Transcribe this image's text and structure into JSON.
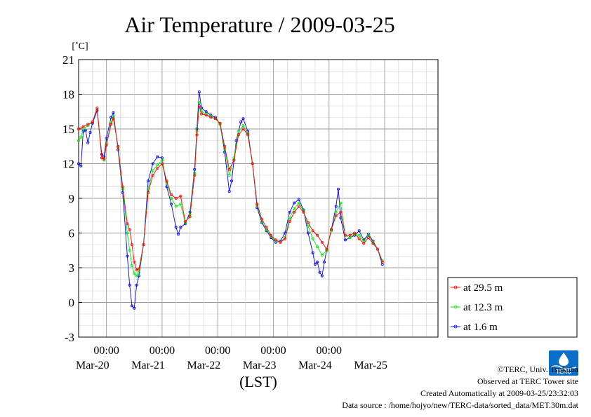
{
  "chart_data": {
    "type": "line",
    "title": "Air Temperature / 2009-03-25",
    "ylabel": "[˚C]",
    "xlabel": "(LST)",
    "ylim": [
      -3,
      21
    ],
    "yticks": [
      -3,
      0,
      3,
      6,
      9,
      12,
      15,
      18,
      21
    ],
    "xlim": [
      "2009-03-19T12:00",
      "2009-03-25T23:00"
    ],
    "time_labels": [
      {
        "at": "2009-03-20T00:00",
        "label": "00:00"
      },
      {
        "at": "2009-03-21T00:00",
        "label": "00:00"
      },
      {
        "at": "2009-03-22T00:00",
        "label": "00:00"
      },
      {
        "at": "2009-03-23T00:00",
        "label": "00:00"
      },
      {
        "at": "2009-03-24T00:00",
        "label": "00:00"
      }
    ],
    "date_labels": [
      {
        "at": "2009-03-19T18:00",
        "label": "Mar-20"
      },
      {
        "at": "2009-03-20T18:00",
        "label": "Mar-21"
      },
      {
        "at": "2009-03-21T18:00",
        "label": "Mar-22"
      },
      {
        "at": "2009-03-22T18:00",
        "label": "Mar-23"
      },
      {
        "at": "2009-03-23T18:00",
        "label": "Mar-24"
      },
      {
        "at": "2009-03-24T18:00",
        "label": "Mar-25"
      }
    ],
    "grid": true,
    "legend_position": "right",
    "series": [
      {
        "name": "at 29.5 m",
        "color": "#ff0000",
        "points": [
          [
            "2009-03-19T12:00",
            15.0
          ],
          [
            "2009-03-19T14:00",
            15.2
          ],
          [
            "2009-03-19T16:00",
            15.4
          ],
          [
            "2009-03-19T18:00",
            15.6
          ],
          [
            "2009-03-19T20:00",
            16.8
          ],
          [
            "2009-03-19T22:00",
            12.5
          ],
          [
            "2009-03-19T23:00",
            12.4
          ],
          [
            "2009-03-20T00:00",
            13.6
          ],
          [
            "2009-03-20T02:00",
            15.4
          ],
          [
            "2009-03-20T03:00",
            15.9
          ],
          [
            "2009-03-20T05:00",
            13.5
          ],
          [
            "2009-03-20T07:00",
            10.0
          ],
          [
            "2009-03-20T09:00",
            6.8
          ],
          [
            "2009-03-20T10:00",
            6.3
          ],
          [
            "2009-03-20T11:00",
            5.0
          ],
          [
            "2009-03-20T12:00",
            3.5
          ],
          [
            "2009-03-20T13:00",
            2.8
          ],
          [
            "2009-03-20T14:00",
            2.9
          ],
          [
            "2009-03-20T16:00",
            5.0
          ],
          [
            "2009-03-20T18:00",
            9.5
          ],
          [
            "2009-03-20T20:00",
            11.0
          ],
          [
            "2009-03-20T22:00",
            11.6
          ],
          [
            "2009-03-21T00:00",
            12.0
          ],
          [
            "2009-03-21T02:00",
            10.5
          ],
          [
            "2009-03-21T04:00",
            9.3
          ],
          [
            "2009-03-21T06:00",
            9.0
          ],
          [
            "2009-03-21T08:00",
            9.2
          ],
          [
            "2009-03-21T10:00",
            7.0
          ],
          [
            "2009-03-21T12:00",
            7.4
          ],
          [
            "2009-03-21T14:00",
            11.0
          ],
          [
            "2009-03-21T15:00",
            14.5
          ],
          [
            "2009-03-21T16:00",
            17.0
          ],
          [
            "2009-03-21T17:00",
            16.3
          ],
          [
            "2009-03-21T19:00",
            16.2
          ],
          [
            "2009-03-21T21:00",
            16.0
          ],
          [
            "2009-03-21T23:00",
            15.9
          ],
          [
            "2009-03-22T01:00",
            15.5
          ],
          [
            "2009-03-22T03:00",
            13.5
          ],
          [
            "2009-03-22T05:00",
            11.5
          ],
          [
            "2009-03-22T07:00",
            12.3
          ],
          [
            "2009-03-22T09:00",
            14.5
          ],
          [
            "2009-03-22T11:00",
            15.0
          ],
          [
            "2009-03-22T13:00",
            14.5
          ],
          [
            "2009-03-22T15:00",
            12.0
          ],
          [
            "2009-03-22T17:00",
            8.5
          ],
          [
            "2009-03-22T19:00",
            7.2
          ],
          [
            "2009-03-22T21:00",
            6.5
          ],
          [
            "2009-03-22T23:00",
            5.8
          ],
          [
            "2009-03-23T01:00",
            5.4
          ],
          [
            "2009-03-23T03:00",
            5.2
          ],
          [
            "2009-03-23T05:00",
            5.5
          ],
          [
            "2009-03-23T07:00",
            7.0
          ],
          [
            "2009-03-23T09:00",
            7.8
          ],
          [
            "2009-03-23T11:00",
            8.3
          ],
          [
            "2009-03-23T13:00",
            7.8
          ],
          [
            "2009-03-23T15:00",
            6.9
          ],
          [
            "2009-03-23T17:00",
            6.2
          ],
          [
            "2009-03-23T19:00",
            5.8
          ],
          [
            "2009-03-23T21:00",
            5.2
          ],
          [
            "2009-03-23T23:00",
            4.6
          ],
          [
            "2009-03-24T01:00",
            6.3
          ],
          [
            "2009-03-24T03:00",
            7.5
          ],
          [
            "2009-03-24T05:00",
            7.8
          ],
          [
            "2009-03-24T07:00",
            5.8
          ],
          [
            "2009-03-24T09:00",
            5.8
          ],
          [
            "2009-03-24T11:00",
            6.0
          ],
          [
            "2009-03-24T13:00",
            5.5
          ],
          [
            "2009-03-24T15:00",
            5.1
          ],
          [
            "2009-03-24T17:00",
            5.6
          ],
          [
            "2009-03-24T19:00",
            5.1
          ],
          [
            "2009-03-24T21:00",
            4.6
          ],
          [
            "2009-03-24T23:00",
            3.5
          ]
        ]
      },
      {
        "name": "at 12.3 m",
        "color": "#00ee00",
        "points": [
          [
            "2009-03-19T12:00",
            14.0
          ],
          [
            "2009-03-19T13:00",
            14.3
          ],
          [
            "2009-03-19T14:00",
            15.0
          ],
          [
            "2009-03-19T16:00",
            15.3
          ],
          [
            "2009-03-19T18:00",
            15.6
          ],
          [
            "2009-03-19T20:00",
            16.8
          ],
          [
            "2009-03-19T22:00",
            12.5
          ],
          [
            "2009-03-19T23:00",
            12.3
          ],
          [
            "2009-03-20T00:00",
            13.7
          ],
          [
            "2009-03-20T02:00",
            15.6
          ],
          [
            "2009-03-20T03:00",
            16.1
          ],
          [
            "2009-03-20T05:00",
            13.4
          ],
          [
            "2009-03-20T07:00",
            9.8
          ],
          [
            "2009-03-20T09:00",
            6.0
          ],
          [
            "2009-03-20T10:00",
            4.5
          ],
          [
            "2009-03-20T11:00",
            3.2
          ],
          [
            "2009-03-20T12:00",
            2.5
          ],
          [
            "2009-03-20T13:00",
            2.3
          ],
          [
            "2009-03-20T14:00",
            2.6
          ],
          [
            "2009-03-20T16:00",
            5.0
          ],
          [
            "2009-03-20T18:00",
            9.8
          ],
          [
            "2009-03-20T20:00",
            11.4
          ],
          [
            "2009-03-20T22:00",
            11.9
          ],
          [
            "2009-03-21T00:00",
            12.3
          ],
          [
            "2009-03-21T02:00",
            10.4
          ],
          [
            "2009-03-21T04:00",
            9.0
          ],
          [
            "2009-03-21T06:00",
            8.3
          ],
          [
            "2009-03-21T08:00",
            8.5
          ],
          [
            "2009-03-21T10:00",
            6.9
          ],
          [
            "2009-03-21T12:00",
            7.6
          ],
          [
            "2009-03-21T14:00",
            11.2
          ],
          [
            "2009-03-21T15:00",
            14.8
          ],
          [
            "2009-03-21T16:00",
            17.3
          ],
          [
            "2009-03-21T17:00",
            16.5
          ],
          [
            "2009-03-21T19:00",
            16.3
          ],
          [
            "2009-03-21T21:00",
            16.1
          ],
          [
            "2009-03-21T23:00",
            15.9
          ],
          [
            "2009-03-22T01:00",
            15.4
          ],
          [
            "2009-03-22T03:00",
            13.3
          ],
          [
            "2009-03-22T05:00",
            11.0
          ],
          [
            "2009-03-22T07:00",
            12.5
          ],
          [
            "2009-03-22T09:00",
            14.8
          ],
          [
            "2009-03-22T11:00",
            15.3
          ],
          [
            "2009-03-22T13:00",
            14.6
          ],
          [
            "2009-03-22T15:00",
            12.0
          ],
          [
            "2009-03-22T17:00",
            8.4
          ],
          [
            "2009-03-22T19:00",
            7.0
          ],
          [
            "2009-03-22T21:00",
            6.3
          ],
          [
            "2009-03-22T23:00",
            5.7
          ],
          [
            "2009-03-23T01:00",
            5.3
          ],
          [
            "2009-03-23T03:00",
            5.2
          ],
          [
            "2009-03-23T05:00",
            5.6
          ],
          [
            "2009-03-23T07:00",
            7.3
          ],
          [
            "2009-03-23T09:00",
            8.1
          ],
          [
            "2009-03-23T11:00",
            8.6
          ],
          [
            "2009-03-23T13:00",
            7.9
          ],
          [
            "2009-03-23T15:00",
            6.6
          ],
          [
            "2009-03-23T17:00",
            5.5
          ],
          [
            "2009-03-23T19:00",
            4.8
          ],
          [
            "2009-03-23T21:00",
            4.1
          ],
          [
            "2009-03-23T23:00",
            4.5
          ],
          [
            "2009-03-24T01:00",
            6.2
          ],
          [
            "2009-03-24T03:00",
            7.8
          ],
          [
            "2009-03-24T05:00",
            8.6
          ],
          [
            "2009-03-24T07:00",
            5.8
          ],
          [
            "2009-03-24T09:00",
            5.6
          ],
          [
            "2009-03-24T11:00",
            5.9
          ],
          [
            "2009-03-24T13:00",
            5.8
          ],
          [
            "2009-03-24T15:00",
            5.3
          ],
          [
            "2009-03-24T17:00",
            5.8
          ],
          [
            "2009-03-24T19:00",
            5.2
          ],
          [
            "2009-03-24T21:00",
            4.6
          ],
          [
            "2009-03-24T23:00",
            3.6
          ]
        ]
      },
      {
        "name": "at 1.6 m",
        "color": "#0000ff",
        "points": [
          [
            "2009-03-19T12:00",
            12.0
          ],
          [
            "2009-03-19T13:00",
            11.8
          ],
          [
            "2009-03-19T14:00",
            14.8
          ],
          [
            "2009-03-19T15:00",
            14.9
          ],
          [
            "2009-03-19T16:00",
            13.8
          ],
          [
            "2009-03-19T17:00",
            14.7
          ],
          [
            "2009-03-19T18:00",
            15.5
          ],
          [
            "2009-03-19T20:00",
            16.6
          ],
          [
            "2009-03-19T22:00",
            12.8
          ],
          [
            "2009-03-19T23:00",
            12.6
          ],
          [
            "2009-03-20T00:00",
            14.2
          ],
          [
            "2009-03-20T02:00",
            16.0
          ],
          [
            "2009-03-20T03:00",
            16.4
          ],
          [
            "2009-03-20T05:00",
            13.2
          ],
          [
            "2009-03-20T07:00",
            9.5
          ],
          [
            "2009-03-20T09:00",
            4.0
          ],
          [
            "2009-03-20T10:00",
            1.5
          ],
          [
            "2009-03-20T11:00",
            -0.3
          ],
          [
            "2009-03-20T12:00",
            -0.5
          ],
          [
            "2009-03-20T13:00",
            1.5
          ],
          [
            "2009-03-20T14:00",
            2.3
          ],
          [
            "2009-03-20T16:00",
            5.0
          ],
          [
            "2009-03-20T18:00",
            10.5
          ],
          [
            "2009-03-20T20:00",
            12.0
          ],
          [
            "2009-03-20T22:00",
            12.6
          ],
          [
            "2009-03-21T00:00",
            12.5
          ],
          [
            "2009-03-21T02:00",
            10.0
          ],
          [
            "2009-03-21T04:00",
            8.5
          ],
          [
            "2009-03-21T06:00",
            6.5
          ],
          [
            "2009-03-21T07:00",
            5.9
          ],
          [
            "2009-03-21T08:00",
            6.5
          ],
          [
            "2009-03-21T10:00",
            6.8
          ],
          [
            "2009-03-21T12:00",
            7.8
          ],
          [
            "2009-03-21T14:00",
            11.5
          ],
          [
            "2009-03-21T15:00",
            15.0
          ],
          [
            "2009-03-21T16:00",
            18.2
          ],
          [
            "2009-03-21T17:00",
            16.8
          ],
          [
            "2009-03-21T19:00",
            16.5
          ],
          [
            "2009-03-21T21:00",
            16.2
          ],
          [
            "2009-03-21T23:00",
            16.0
          ],
          [
            "2009-03-22T01:00",
            15.4
          ],
          [
            "2009-03-22T03:00",
            13.0
          ],
          [
            "2009-03-22T05:00",
            9.6
          ],
          [
            "2009-03-22T06:00",
            10.5
          ],
          [
            "2009-03-22T08:00",
            14.0
          ],
          [
            "2009-03-22T10:00",
            15.6
          ],
          [
            "2009-03-22T11:00",
            15.9
          ],
          [
            "2009-03-22T13:00",
            14.8
          ],
          [
            "2009-03-22T15:00",
            12.0
          ],
          [
            "2009-03-22T17:00",
            8.2
          ],
          [
            "2009-03-22T19:00",
            6.9
          ],
          [
            "2009-03-22T21:00",
            6.2
          ],
          [
            "2009-03-22T23:00",
            5.6
          ],
          [
            "2009-03-23T01:00",
            5.2
          ],
          [
            "2009-03-23T03:00",
            5.3
          ],
          [
            "2009-03-23T05:00",
            6.0
          ],
          [
            "2009-03-23T07:00",
            7.8
          ],
          [
            "2009-03-23T09:00",
            8.6
          ],
          [
            "2009-03-23T11:00",
            8.9
          ],
          [
            "2009-03-23T13:00",
            8.0
          ],
          [
            "2009-03-23T15:00",
            6.0
          ],
          [
            "2009-03-23T17:00",
            4.3
          ],
          [
            "2009-03-23T18:00",
            3.3
          ],
          [
            "2009-03-23T19:00",
            3.5
          ],
          [
            "2009-03-23T20:00",
            2.6
          ],
          [
            "2009-03-23T21:00",
            2.3
          ],
          [
            "2009-03-23T22:00",
            3.5
          ],
          [
            "2009-03-23T23:00",
            4.5
          ],
          [
            "2009-03-24T01:00",
            6.3
          ],
          [
            "2009-03-24T03:00",
            8.3
          ],
          [
            "2009-03-24T04:00",
            9.8
          ],
          [
            "2009-03-24T05:00",
            7.3
          ],
          [
            "2009-03-24T07:00",
            5.4
          ],
          [
            "2009-03-24T09:00",
            5.6
          ],
          [
            "2009-03-24T11:00",
            5.8
          ],
          [
            "2009-03-24T13:00",
            6.2
          ],
          [
            "2009-03-24T15:00",
            5.4
          ],
          [
            "2009-03-24T17:00",
            5.9
          ],
          [
            "2009-03-24T19:00",
            5.3
          ],
          [
            "2009-03-24T21:00",
            4.6
          ],
          [
            "2009-03-24T23:00",
            3.3
          ]
        ]
      }
    ]
  },
  "footer": {
    "copyright": "©TERC, Univ. Tsukuba",
    "observed": "Observed at TERC Tower site",
    "created": "Created Automatically at 2009-03-25/23:32:03",
    "source": "Data source : /home/hojyo/new/TERC-data/sorted_data/MET.30m.dat"
  },
  "logo": {
    "text": "TERC",
    "color": "#0a6fc8"
  }
}
